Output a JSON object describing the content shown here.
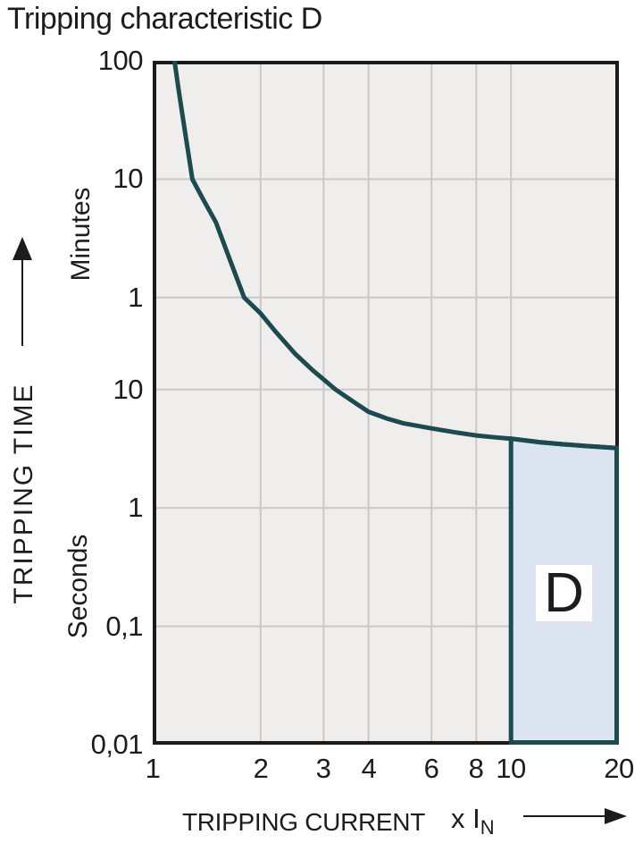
{
  "title": "Tripping characteristic D",
  "colors": {
    "background": "#ffffff",
    "ink": "#1c1c1c",
    "plot_bg": "#efeeec",
    "gridline": "#c9c9c9",
    "plot_border": "#1a1a1a",
    "curve": "#1c4b4f",
    "region_fill": "#dce4f2",
    "region_label_bg": "#ffffff"
  },
  "chart_data": {
    "type": "line",
    "title": "Tripping characteristic D",
    "grid": true,
    "x_axis": {
      "label": "TRIPPING CURRENT",
      "unit_main": "x I",
      "unit_subscript": "N",
      "scale": "log",
      "min": 1,
      "max": 20,
      "ticks": [
        {
          "label": "1",
          "value": 1
        },
        {
          "label": "2",
          "value": 2
        },
        {
          "label": "3",
          "value": 3
        },
        {
          "label": "4",
          "value": 4
        },
        {
          "label": "6",
          "value": 6
        },
        {
          "label": "8",
          "value": 8
        },
        {
          "label": "10",
          "value": 10
        },
        {
          "label": "20",
          "value": 20
        }
      ],
      "gridline_values": [
        2,
        3,
        4,
        6,
        8,
        10
      ]
    },
    "y_axis": {
      "label": "TRIPPING TIME",
      "scale": "log",
      "min_seconds": 0.01,
      "max_seconds": 6000,
      "ticks": [
        {
          "label": "100",
          "seconds": 6000,
          "unit": "minutes"
        },
        {
          "label": "10",
          "seconds": 600,
          "unit": "minutes"
        },
        {
          "label": "1",
          "seconds": 60,
          "unit": "minutes"
        },
        {
          "label": "10",
          "seconds": 10,
          "unit": "seconds"
        },
        {
          "label": "1",
          "seconds": 1,
          "unit": "seconds"
        },
        {
          "label": "0,1",
          "seconds": 0.1,
          "unit": "seconds"
        },
        {
          "label": "0,01",
          "seconds": 0.01,
          "unit": "seconds"
        }
      ],
      "gridline_seconds": [
        600,
        60,
        10,
        1,
        0.1
      ],
      "unit_groups": [
        {
          "label": "Minutes"
        },
        {
          "label": "Seconds"
        }
      ]
    },
    "series": [
      {
        "name": "D",
        "points": [
          [
            1.15,
            6000
          ],
          [
            1.18,
            3500
          ],
          [
            1.22,
            1800
          ],
          [
            1.29,
            600
          ],
          [
            1.38,
            410
          ],
          [
            1.5,
            260
          ],
          [
            1.65,
            120
          ],
          [
            1.8,
            60
          ],
          [
            2.0,
            44
          ],
          [
            2.2,
            31
          ],
          [
            2.5,
            20
          ],
          [
            2.8,
            14.5
          ],
          [
            3.24,
            10
          ],
          [
            3.7,
            7.6
          ],
          [
            4,
            6.5
          ],
          [
            4.5,
            5.7
          ],
          [
            5,
            5.2
          ],
          [
            6,
            4.7
          ],
          [
            7,
            4.35
          ],
          [
            8,
            4.1
          ],
          [
            9,
            3.95
          ],
          [
            10,
            3.85
          ],
          [
            12,
            3.6
          ],
          [
            14,
            3.45
          ],
          [
            16,
            3.35
          ],
          [
            18,
            3.27
          ],
          [
            20,
            3.2
          ]
        ]
      }
    ],
    "region": {
      "label": "D",
      "x_min": 10,
      "x_max": 20
    }
  }
}
